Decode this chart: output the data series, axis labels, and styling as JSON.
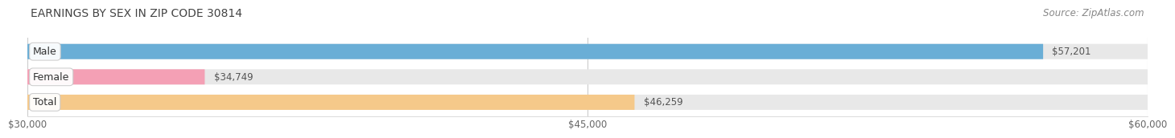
{
  "title": "EARNINGS BY SEX IN ZIP CODE 30814",
  "source": "Source: ZipAtlas.com",
  "categories": [
    "Male",
    "Female",
    "Total"
  ],
  "values": [
    57201,
    34749,
    46259
  ],
  "bar_colors": [
    "#6aaed6",
    "#f4a0b5",
    "#f5c98a"
  ],
  "value_labels": [
    "$57,201",
    "$34,749",
    "$46,259"
  ],
  "xmin": 30000,
  "xmax": 60000,
  "xticks": [
    30000,
    45000,
    60000
  ],
  "xtick_labels": [
    "$30,000",
    "$45,000",
    "$60,000"
  ],
  "background_color": "#f5f5f5",
  "bar_bg_color": "#e8e8e8",
  "title_fontsize": 10,
  "source_fontsize": 8.5,
  "label_fontsize": 9,
  "value_fontsize": 8.5,
  "bar_height": 0.6,
  "bar_gap": 0.15
}
